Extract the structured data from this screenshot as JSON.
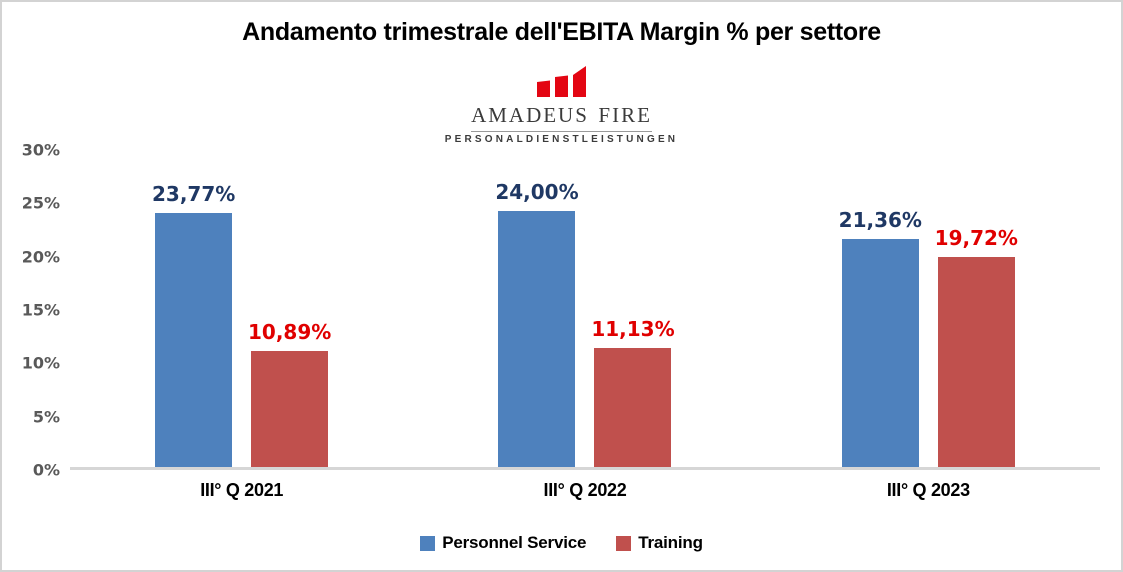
{
  "page": {
    "background": "#ffffff",
    "border_color": "#d3d3d3"
  },
  "logo": {
    "icon": "rising-bars-logo-icon",
    "icon_color": "#e30613",
    "name": "Amadeus FiRe",
    "tagline": "PERSONALDIENSTLEISTUNGEN"
  },
  "chart_data": {
    "type": "bar",
    "title": "Andamento trimestrale dell'EBITA Margin % per settore",
    "categories": [
      "III° Q 2021",
      "III° Q 2022",
      "III° Q 2023"
    ],
    "series": [
      {
        "name": "Personnel Service",
        "color": "#4e81bd",
        "label_color": "#1f3864",
        "values": [
          23.77,
          24.0,
          21.36
        ],
        "labels": [
          "23,77%",
          "24,00%",
          "21,36%"
        ]
      },
      {
        "name": "Training",
        "color": "#c0504d",
        "label_color": "#e00000",
        "values": [
          10.89,
          11.13,
          19.72
        ],
        "labels": [
          "10,89%",
          "11,13%",
          "19,72%"
        ]
      }
    ],
    "ylim": [
      0,
      30
    ],
    "yticks": [
      {
        "value": 30,
        "label": "30%"
      },
      {
        "value": 25,
        "label": "25%"
      },
      {
        "value": 20,
        "label": "20%"
      },
      {
        "value": 15,
        "label": "15%"
      },
      {
        "value": 10,
        "label": "10%"
      },
      {
        "value": 5,
        "label": "5%"
      },
      {
        "value": 0,
        "label": "0%"
      }
    ],
    "xlabel": "",
    "ylabel": "",
    "grid": false,
    "legend_position": "bottom"
  }
}
